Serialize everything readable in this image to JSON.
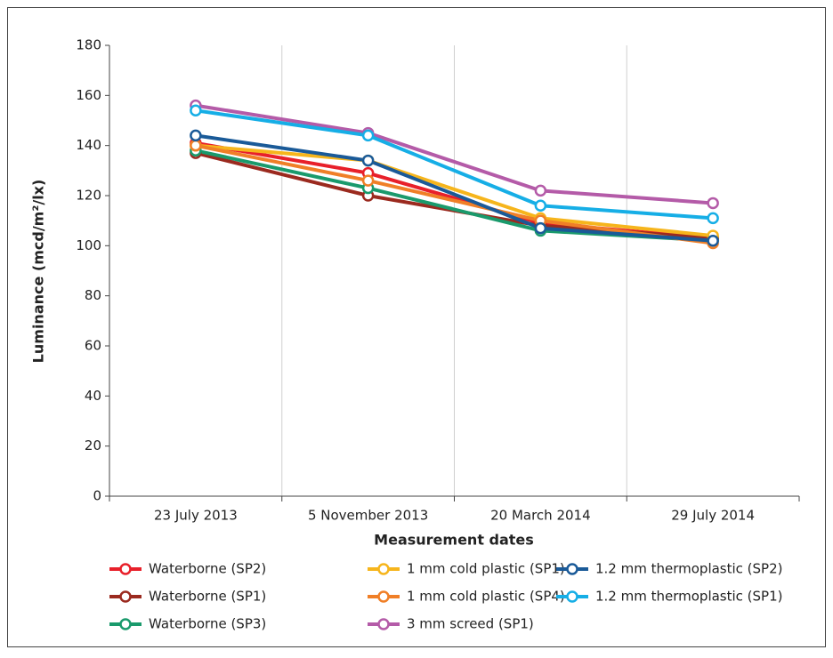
{
  "chart_data": {
    "type": "line",
    "x_label": "Measurement dates",
    "y_label": "Luminance (mcd/m²/lx)",
    "categories": [
      "23 July 2013",
      "5 November 2013",
      "20 March 2014",
      "29 July 2014"
    ],
    "ylim": [
      0,
      180
    ],
    "yticks": [
      0,
      20,
      40,
      60,
      80,
      100,
      120,
      140,
      160,
      180
    ],
    "grid": "x",
    "series": [
      {
        "name": "Waterborne (SP2)",
        "color": "#e8202a",
        "values": [
          141,
          129,
          109,
          103
        ]
      },
      {
        "name": "Waterborne (SP1)",
        "color": "#9b2a1f",
        "values": [
          137,
          120,
          108,
          103
        ]
      },
      {
        "name": "Waterborne (SP3)",
        "color": "#1a9a6c",
        "values": [
          138,
          123,
          106,
          102
        ]
      },
      {
        "name": "1 mm cold plastic (SP1)",
        "color": "#f6b51c",
        "values": [
          140,
          134,
          111,
          104
        ]
      },
      {
        "name": "1 mm cold plastic (SP4)",
        "color": "#f07f27",
        "values": [
          140,
          126,
          110,
          101
        ]
      },
      {
        "name": "3 mm screed (SP1)",
        "color": "#b45ba8",
        "values": [
          156,
          145,
          122,
          117
        ]
      },
      {
        "name": "1.2 mm thermoplastic (SP2)",
        "color": "#1a5a98",
        "values": [
          144,
          134,
          107,
          102
        ]
      },
      {
        "name": "1.2 mm thermoplastic (SP1)",
        "color": "#16aee6",
        "values": [
          154,
          144,
          116,
          111
        ]
      }
    ]
  }
}
